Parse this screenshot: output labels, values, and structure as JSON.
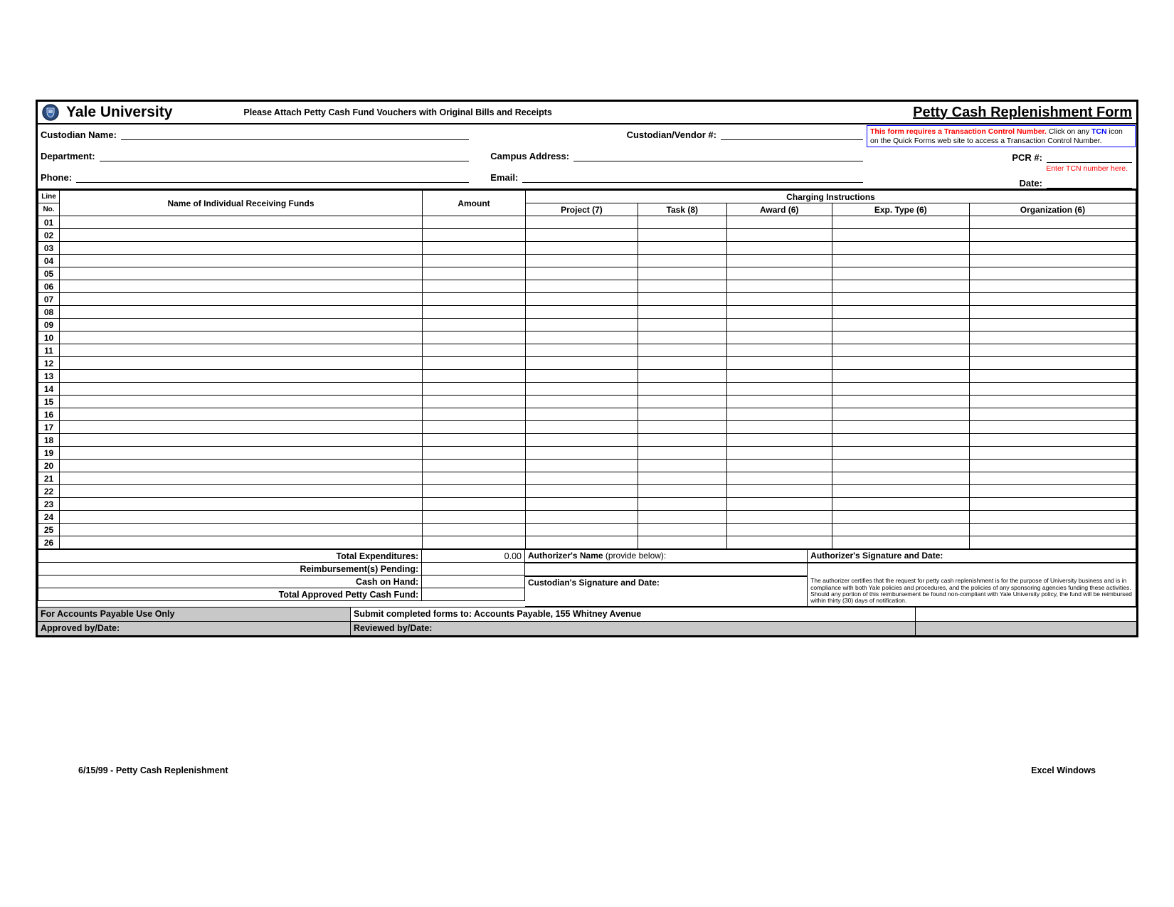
{
  "header": {
    "university": "Yale University",
    "attach_note": "Please Attach Petty Cash Fund Vouchers with Original Bills and Receipts",
    "form_title": "Petty Cash Replenishment Form"
  },
  "tcn_box": {
    "line1_red": "This form requires a Transaction Control Number.",
    "line1_plain": " Click on any ",
    "line1_blue": "TCN",
    "line2": "icon on  the Quick Forms web site to access a Transaction Control Number."
  },
  "fields": {
    "custodian_name": "Custodian Name:",
    "department": "Department:",
    "phone": "Phone:",
    "custodian_vendor": "Custodian/Vendor #:",
    "campus_address": "Campus Address:",
    "email": "Email:",
    "pcr": "PCR #:",
    "tcn_hint": "Enter TCN number here.",
    "date": "Date:"
  },
  "columns": {
    "line": "Line",
    "no": "No.",
    "name": "Name of Individual Receiving Funds",
    "amount": "Amount",
    "charging": "Charging Instructions",
    "project": "Project (7)",
    "task": "Task (8)",
    "award": "Award (6)",
    "exp_type": "Exp. Type (6)",
    "organization": "Organization (6)"
  },
  "row_numbers": [
    "01",
    "02",
    "03",
    "04",
    "05",
    "06",
    "07",
    "08",
    "09",
    "10",
    "11",
    "12",
    "13",
    "14",
    "15",
    "16",
    "17",
    "18",
    "19",
    "20",
    "21",
    "22",
    "23",
    "24",
    "25",
    "26"
  ],
  "totals": {
    "total_exp_label": "Total Expenditures:",
    "total_exp_value": "0.00",
    "reimb_pending": "Reimbursement(s) Pending:",
    "cash_on_hand": "Cash on Hand:",
    "total_approved": "Total Approved Petty Cash Fund:"
  },
  "signatures": {
    "auth_name": "Authorizer's Name",
    "auth_name_suffix": " (provide below):",
    "auth_sig": "Authorizer's Signature and Date:",
    "cust_sig": "Custodian's Signature and Date:"
  },
  "disclaimer": "The authorizer certifies that the request for petty cash replenishment is for the purpose of University business and is in compliance with both Yale policies and procedures, and the policies of any sponsoring agencies funding these activities. Should any portion of this reimbursement be found non-compliant with Yale University policy, the fund will be reimbursed within thirty (30) days of notification.",
  "ap": {
    "for_ap": "For Accounts Payable Use Only",
    "submit": "Submit completed forms to: Accounts Payable, 155 Whitney Avenue",
    "approved": "Approved by/Date:",
    "reviewed": "Reviewed by/Date:"
  },
  "footer": {
    "left": "6/15/99 - Petty Cash Replenishment",
    "right": "Excel Windows"
  },
  "colors": {
    "border": "#000000",
    "red": "#ff0000",
    "blue": "#0000ff",
    "gray": "#c8c8c8",
    "bg": "#ffffff"
  }
}
